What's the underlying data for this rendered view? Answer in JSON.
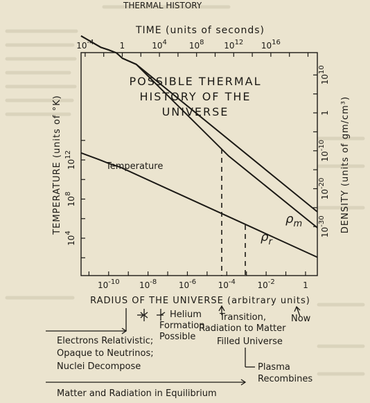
{
  "page": {
    "header_fragment": "THERMAL HISTORY"
  },
  "chart_data": {
    "type": "line",
    "title": "POSSIBLE THERMAL HISTORY OF THE UNIVERSE",
    "top_axis": {
      "label": "TIME (units of seconds)",
      "ticks": [
        "10^-4",
        "1",
        "10^4",
        "10^8",
        "10^12",
        "10^16"
      ]
    },
    "bottom_axis": {
      "label": "RADIUS OF THE UNIVERSE (arbitrary units)",
      "ticks": [
        "10^-10",
        "10^-8",
        "10^-6",
        "10^-4",
        "10^-2",
        "1"
      ],
      "xlim_log10": [
        -11.4,
        0.6
      ]
    },
    "left_axis": {
      "label": "TEMPERATURE (units of °K)",
      "ticks": [
        "10^4",
        "10^8",
        "10^12"
      ]
    },
    "right_axis": {
      "label": "DENSITY (units of gm/cm³)",
      "ticks": [
        "10^-30",
        "10^-20",
        "10^-10",
        "1",
        "10^10"
      ]
    },
    "series": [
      {
        "name": "Temperature",
        "log10_radius": [
          -11.4,
          -10.5,
          -10.0,
          -9.4,
          0.6
        ],
        "log10_value": [
          12.72,
          12.05,
          11.65,
          11.25,
          2.05
        ]
      },
      {
        "name": "ρm",
        "log10_radius": [
          -11.4,
          -10.4,
          -10.0,
          -9.6,
          -9.3,
          -8.6,
          0.6
        ],
        "log10_density": [
          20.3,
          17.3,
          16.6,
          15.8,
          14.4,
          12.8,
          -26.1
        ]
      },
      {
        "name": "ρr",
        "log10_radius": [
          -11.4,
          -10.4,
          -10.0,
          -9.6,
          -9.3,
          -8.6,
          -3.9,
          0.6
        ],
        "log10_density": [
          20.3,
          17.3,
          16.6,
          15.8,
          14.4,
          12.8,
          -11.4,
          -30.3
        ]
      }
    ],
    "markers": [
      {
        "name": "Transition, Radiation to Matter Filled Universe",
        "log10_radius": -3.9
      },
      {
        "name": "Plasma Recombines",
        "log10_radius": -3.0
      },
      {
        "name": "Now",
        "log10_radius": 0.0
      }
    ],
    "annotations": {
      "helium": "Helium Formation Possible",
      "electrons": "Electrons Relativistic; Opaque to Neutrinos; Nuclei Decompose",
      "equilibrium": "Matter and Radiation in Equilibrium"
    },
    "colors": {
      "paper": "#ebe4cf",
      "ink": "#1c1a16"
    }
  }
}
